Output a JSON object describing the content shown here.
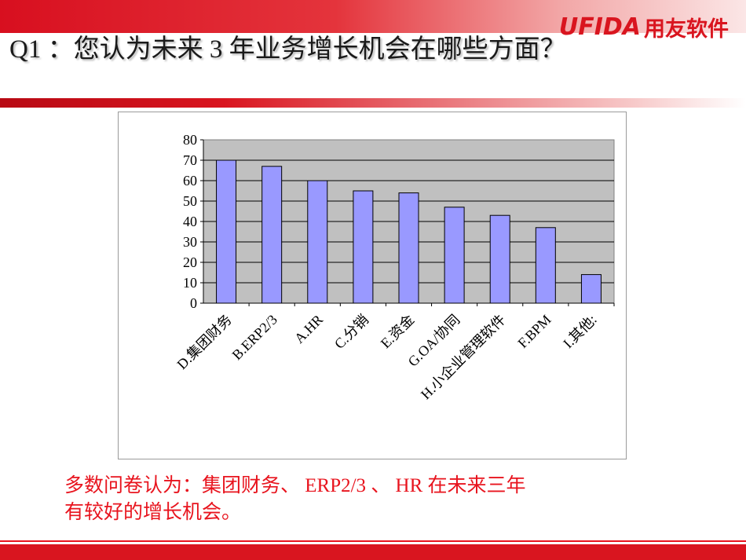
{
  "header": {
    "logo_latin": "UFIDA",
    "logo_cn": "用友软件",
    "title": "Q1 ：您认为未来 3 年业务增长机会在哪些方面？"
  },
  "colors": {
    "brand_red": "#d9151f",
    "bar_fill": "#9999ff",
    "plot_bg": "#c0c0c0"
  },
  "chart_data": {
    "type": "bar",
    "categories": [
      "D.集团财务",
      "B.ERP2/3",
      "A.HR",
      "C.分销",
      "E.资金",
      "G.OA/协同",
      "H.小企业管理软件",
      "F.BPM",
      "I.其他:"
    ],
    "values": [
      70,
      67,
      60,
      55,
      54,
      47,
      43,
      37,
      14
    ],
    "ylim": [
      0,
      80
    ],
    "yticks": [
      "80",
      "70",
      "60",
      "50",
      "40",
      "30",
      "20",
      "10",
      "0"
    ],
    "grid": true,
    "legend": "none",
    "xlabel": "",
    "ylabel": ""
  },
  "note": {
    "line1": "多数问卷认为：集团财务、 ERP2/3 、 HR 在未来三年",
    "line2": "有较好的增长机会。"
  }
}
